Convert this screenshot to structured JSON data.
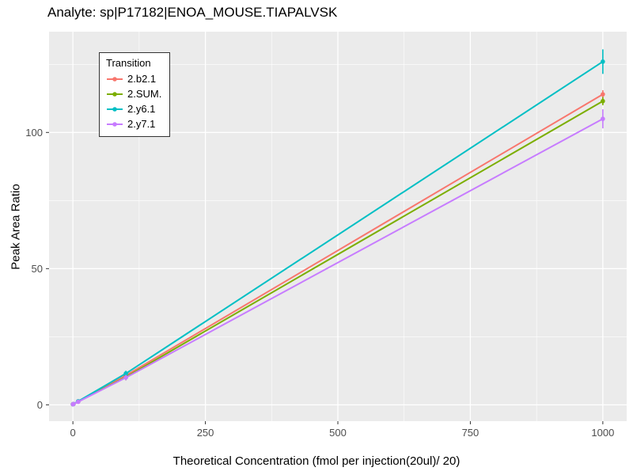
{
  "chart_data": {
    "type": "line",
    "title": "Analyte: sp|P17182|ENOA_MOUSE.TIAPALVSK",
    "xlabel": "Theoretical Concentration (fmol per injection(20ul)/ 20)",
    "ylabel": "Peak Area Ratio",
    "legend_title": "Transition",
    "legend_position": "top-left-inside",
    "panel_background": "#EBEBEB",
    "gridline_color": "#FFFFFF",
    "tick_label_color": "#4D4D4D",
    "xlim": [
      -45,
      1045
    ],
    "ylim": [
      -6,
      137
    ],
    "x_major_ticks": [
      0,
      250,
      500,
      750,
      1000
    ],
    "x_minor_ticks": [
      125,
      375,
      625,
      875
    ],
    "y_major_ticks": [
      0,
      50,
      100
    ],
    "y_minor_ticks": [
      25,
      75,
      125
    ],
    "x": [
      0,
      1,
      10,
      100,
      1000
    ],
    "series": [
      {
        "name": "2.b2.1",
        "color": "#F8766D",
        "values": [
          0.2,
          0.3,
          1.2,
          10.8,
          114.0
        ],
        "errors": [
          0.3,
          0.3,
          0.4,
          1.0,
          1.5
        ]
      },
      {
        "name": "2.SUM.",
        "color": "#7CAE00",
        "values": [
          0.2,
          0.3,
          1.2,
          10.2,
          111.5
        ],
        "errors": [
          0.3,
          0.3,
          0.4,
          1.2,
          1.5
        ]
      },
      {
        "name": "2.y6.1",
        "color": "#00BFC4",
        "values": [
          0.2,
          0.3,
          1.3,
          11.5,
          126.0
        ],
        "errors": [
          0.3,
          0.3,
          0.4,
          1.0,
          4.5
        ]
      },
      {
        "name": "2.y7.1",
        "color": "#C77CFF",
        "values": [
          0.2,
          0.3,
          1.1,
          10.0,
          105.0
        ],
        "errors": [
          0.3,
          0.3,
          0.4,
          1.0,
          3.5
        ]
      }
    ]
  }
}
